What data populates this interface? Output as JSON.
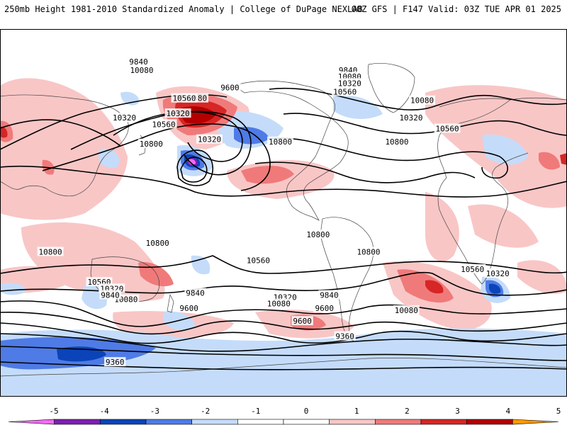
{
  "header": {
    "left": "250mb Height 1981-2010 Standardized Anomaly | College of DuPage NEXLAB",
    "right": "00Z GFS | F147 Valid: 03Z TUE APR 01 2025"
  },
  "colors": {
    "neg5": "#f26cf2",
    "neg4": "#7d1fb0",
    "neg3": "#0b44b8",
    "neg2": "#4f7be6",
    "neg1": "#c4dcfa",
    "pos1": "#f9c6c6",
    "pos2": "#f07a7a",
    "pos3": "#d62626",
    "pos4": "#b40000",
    "pos5": "#ff9a00",
    "land": "#ffffff",
    "coast": "#444444",
    "contour": "#000000"
  },
  "colorbar": {
    "ticks": [
      "-5",
      "-4",
      "-3",
      "-2",
      "-1",
      "0",
      "1",
      "2",
      "3",
      "4",
      "5"
    ],
    "fills": [
      "#f26cf2",
      "#7d1fb0",
      "#0b44b8",
      "#4f7be6",
      "#c4dcfa",
      "#ffffff",
      "#ffffff",
      "#f9c6c6",
      "#f07a7a",
      "#d62626",
      "#b40000",
      "#ff9a00"
    ]
  },
  "contour_labels": [
    {
      "text": "9840",
      "lon": -119,
      "lat": 63
    },
    {
      "text": "10080",
      "lon": -118,
      "lat": 60
    },
    {
      "text": "10320",
      "lon": -118,
      "lat": 57
    },
    {
      "text": "10560",
      "lon": -121,
      "lat": 53
    },
    {
      "text": "9600",
      "lon": 166,
      "lat": 55
    },
    {
      "text": "10080",
      "lon": 144,
      "lat": 50
    },
    {
      "text": "10320",
      "lon": 133,
      "lat": 43
    },
    {
      "text": "10560",
      "lon": 124,
      "lat": 38
    },
    {
      "text": "10800",
      "lon": -162,
      "lat": 30
    },
    {
      "text": "10080",
      "lon": -72,
      "lat": 49
    },
    {
      "text": "10320",
      "lon": -79,
      "lat": 41
    },
    {
      "text": "10560",
      "lon": -56,
      "lat": 36
    },
    {
      "text": "10800",
      "lon": -88,
      "lat": 30
    },
    {
      "text": "9840",
      "lon": 108,
      "lat": 67
    },
    {
      "text": "10080",
      "lon": 110,
      "lat": 63
    },
    {
      "text": "10560",
      "lon": 137,
      "lat": 50
    },
    {
      "text": "10320",
      "lon": 99,
      "lat": 41
    },
    {
      "text": "10320",
      "lon": 153,
      "lat": 31
    },
    {
      "text": "10800",
      "lon": 116,
      "lat": 29
    },
    {
      "text": "10800",
      "lon": -138,
      "lat": -13
    },
    {
      "text": "10800",
      "lon": -106,
      "lat": -21
    },
    {
      "text": "10560",
      "lon": -176,
      "lat": -25
    },
    {
      "text": "10560",
      "lon": -40,
      "lat": -29
    },
    {
      "text": "10320",
      "lon": -24,
      "lat": -31
    },
    {
      "text": "10800",
      "lon": 52,
      "lat": -21
    },
    {
      "text": "10800",
      "lon": 120,
      "lat": -17
    },
    {
      "text": "9840",
      "lon": -131,
      "lat": -41
    },
    {
      "text": "9600",
      "lon": -134,
      "lat": -47
    },
    {
      "text": "10320",
      "lon": -159,
      "lat": -42
    },
    {
      "text": "10080",
      "lon": -163,
      "lat": -45
    },
    {
      "text": "9840",
      "lon": 144,
      "lat": -40
    },
    {
      "text": "9600",
      "lon": 140,
      "lat": -47
    },
    {
      "text": "10560",
      "lon": 83,
      "lat": -35
    },
    {
      "text": "10320",
      "lon": 91,
      "lat": -38
    },
    {
      "text": "10080",
      "lon": 100,
      "lat": -43
    },
    {
      "text": "10080",
      "lon": -82,
      "lat": -48
    },
    {
      "text": "9840",
      "lon": 90,
      "lat": -41
    },
    {
      "text": "9600",
      "lon": -148,
      "lat": -53
    },
    {
      "text": "9360",
      "lon": -121,
      "lat": -60
    },
    {
      "text": "9360",
      "lon": 93,
      "lat": -72
    }
  ]
}
